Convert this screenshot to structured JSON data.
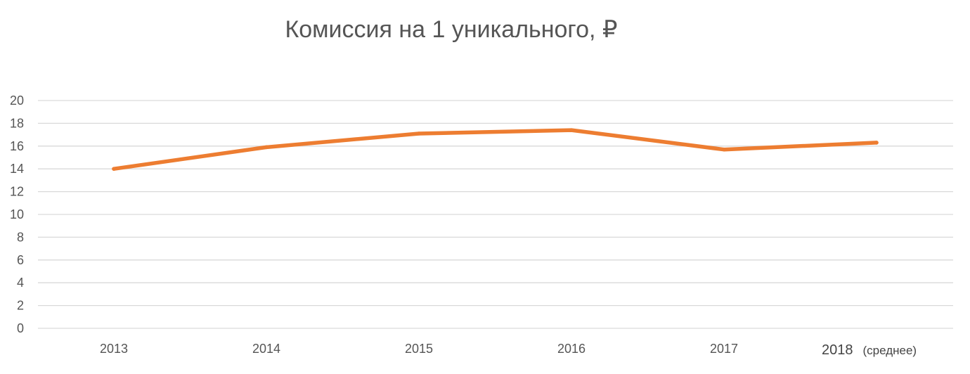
{
  "chart_data": {
    "type": "line",
    "title": "Комиссия на 1 уникального, ₽",
    "xlabel": "",
    "ylabel": "",
    "categories": [
      "2013",
      "2014",
      "2015",
      "2016",
      "2017",
      "2018"
    ],
    "category_notes": [
      "",
      "",
      "",
      "",
      "",
      "(среднее)"
    ],
    "series": [
      {
        "values": [
          14.0,
          15.9,
          17.1,
          17.4,
          15.7,
          16.3
        ],
        "color": "#ED7D31"
      }
    ],
    "ylim": [
      0,
      20
    ],
    "yticks": [
      0,
      2,
      4,
      6,
      8,
      10,
      12,
      14,
      16,
      18,
      20
    ],
    "grid": true,
    "gridColor": "#D9D9D9",
    "legend": "none"
  }
}
